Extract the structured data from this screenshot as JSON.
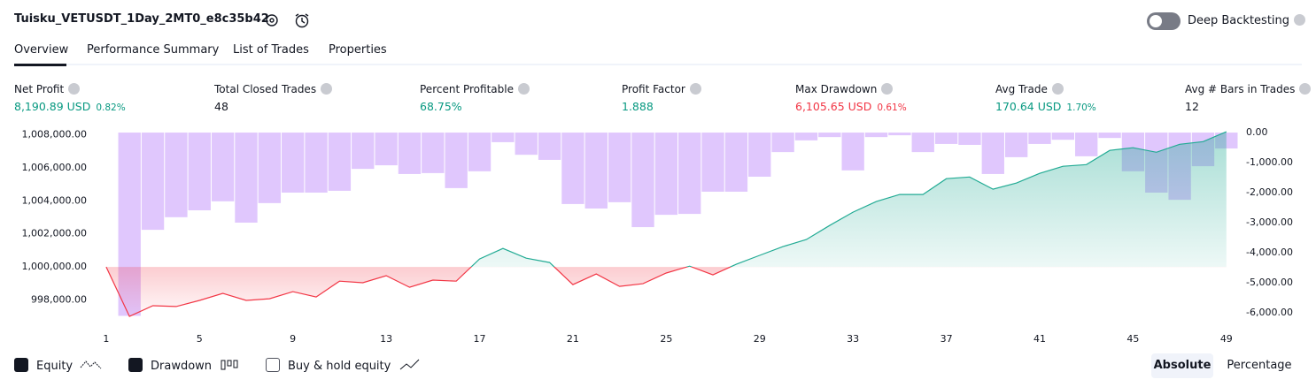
{
  "header": {
    "title": "Tuisku_VETUSDT_1Day_2MT0_e8c35b42",
    "deep_backtesting": "Deep Backtesting"
  },
  "tabs": [
    "Overview",
    "Performance Summary",
    "List of Trades",
    "Properties"
  ],
  "stats": [
    {
      "label": "Net Profit",
      "value": "8,190.89 USD",
      "percent": "0.82%",
      "color": "#089981"
    },
    {
      "label": "Total Closed Trades",
      "value": "48",
      "color": "#131722"
    },
    {
      "label": "Percent Profitable",
      "value": "68.75%",
      "color": "#089981"
    },
    {
      "label": "Profit Factor",
      "value": "1.888",
      "color": "#089981"
    },
    {
      "label": "Max Drawdown",
      "value": "6,105.65 USD",
      "percent": "0.61%",
      "color": "#f23645"
    },
    {
      "label": "Avg Trade",
      "value": "170.64 USD",
      "percent": "1.70%",
      "color": "#089981"
    },
    {
      "label": "Avg # Bars in Trades",
      "value": "12",
      "color": "#131722"
    }
  ],
  "chart_data": {
    "type": "combo",
    "x": [
      1,
      2,
      3,
      4,
      5,
      6,
      7,
      8,
      9,
      10,
      11,
      12,
      13,
      14,
      15,
      16,
      17,
      18,
      19,
      20,
      21,
      22,
      23,
      24,
      25,
      26,
      27,
      28,
      29,
      30,
      31,
      32,
      33,
      34,
      35,
      36,
      37,
      38,
      39,
      40,
      41,
      42,
      43,
      44,
      45,
      46,
      47,
      48,
      49
    ],
    "xlim": [
      0.55,
      49.5
    ],
    "xticks": [
      1,
      5,
      9,
      13,
      17,
      21,
      25,
      29,
      33,
      37,
      41,
      45,
      49
    ],
    "ylim": [
      996900,
      1008250
    ],
    "yticks": [
      {
        "value": 998000,
        "label": "998,000.00"
      },
      {
        "value": 1000000,
        "label": "1,000,000.00"
      },
      {
        "value": 1002000,
        "label": "1,002,000.00"
      },
      {
        "value": 1004000,
        "label": "1,004,000.00"
      },
      {
        "value": 1006000,
        "label": "1,006,000.00"
      },
      {
        "value": 1008000,
        "label": "1,008,000.00"
      }
    ],
    "y2lim": [
      -6180,
      60
    ],
    "y2ticks": [
      {
        "value": 0,
        "label": "0.00"
      },
      {
        "value": -1000,
        "label": "-1,000.00"
      },
      {
        "value": -2000,
        "label": "-2,000.00"
      },
      {
        "value": -3000,
        "label": "-3,000.00"
      },
      {
        "value": -4000,
        "label": "-4,000.00"
      },
      {
        "value": -5000,
        "label": "-5,000.00"
      },
      {
        "value": -6000,
        "label": "-6,000.00"
      }
    ],
    "series": [
      {
        "name": "Drawdown",
        "type": "bar",
        "axis": "y2",
        "color": "#d6b4fc",
        "values": [
          0,
          -6105.65,
          -3240,
          -2820,
          -2590,
          -2290,
          -3000,
          -2350,
          -2000,
          -2000,
          -1940,
          -1210,
          -1090,
          -1380,
          -1350,
          -1850,
          -1290,
          -320,
          -740,
          -910,
          -2380,
          -2530,
          -2320,
          -3150,
          -2740,
          -2710,
          -1970,
          -1970,
          -1470,
          -650,
          -260,
          -150,
          -1260,
          -150,
          -90,
          -650,
          -380,
          -410,
          -1380,
          -820,
          -380,
          -240,
          -790,
          -180,
          -1290,
          -2000,
          -2240,
          -1120,
          -530
        ]
      },
      {
        "name": "Equity",
        "type": "area",
        "baseline": 1000000,
        "color": "#22ab94",
        "color_below": "#f23645",
        "values": [
          1000000,
          997000,
          997650,
          997600,
          997970,
          998400,
          997970,
          998070,
          998500,
          998180,
          999140,
          999040,
          999470,
          998770,
          999200,
          999140,
          1000480,
          1001120,
          1000530,
          1000270,
          998930,
          999570,
          998820,
          998980,
          999630,
          1000050,
          999520,
          1000160,
          1000700,
          1001230,
          1001660,
          1002510,
          1003320,
          1003960,
          1004390,
          1004390,
          1005350,
          1005450,
          1004710,
          1005080,
          1005670,
          1006100,
          1006200,
          1007060,
          1007220,
          1006950,
          1007430,
          1007590,
          1008190
        ]
      }
    ]
  },
  "footer": {
    "buy_hold": "Buy & hold equity",
    "modes": [
      "Absolute",
      "Percentage"
    ]
  }
}
